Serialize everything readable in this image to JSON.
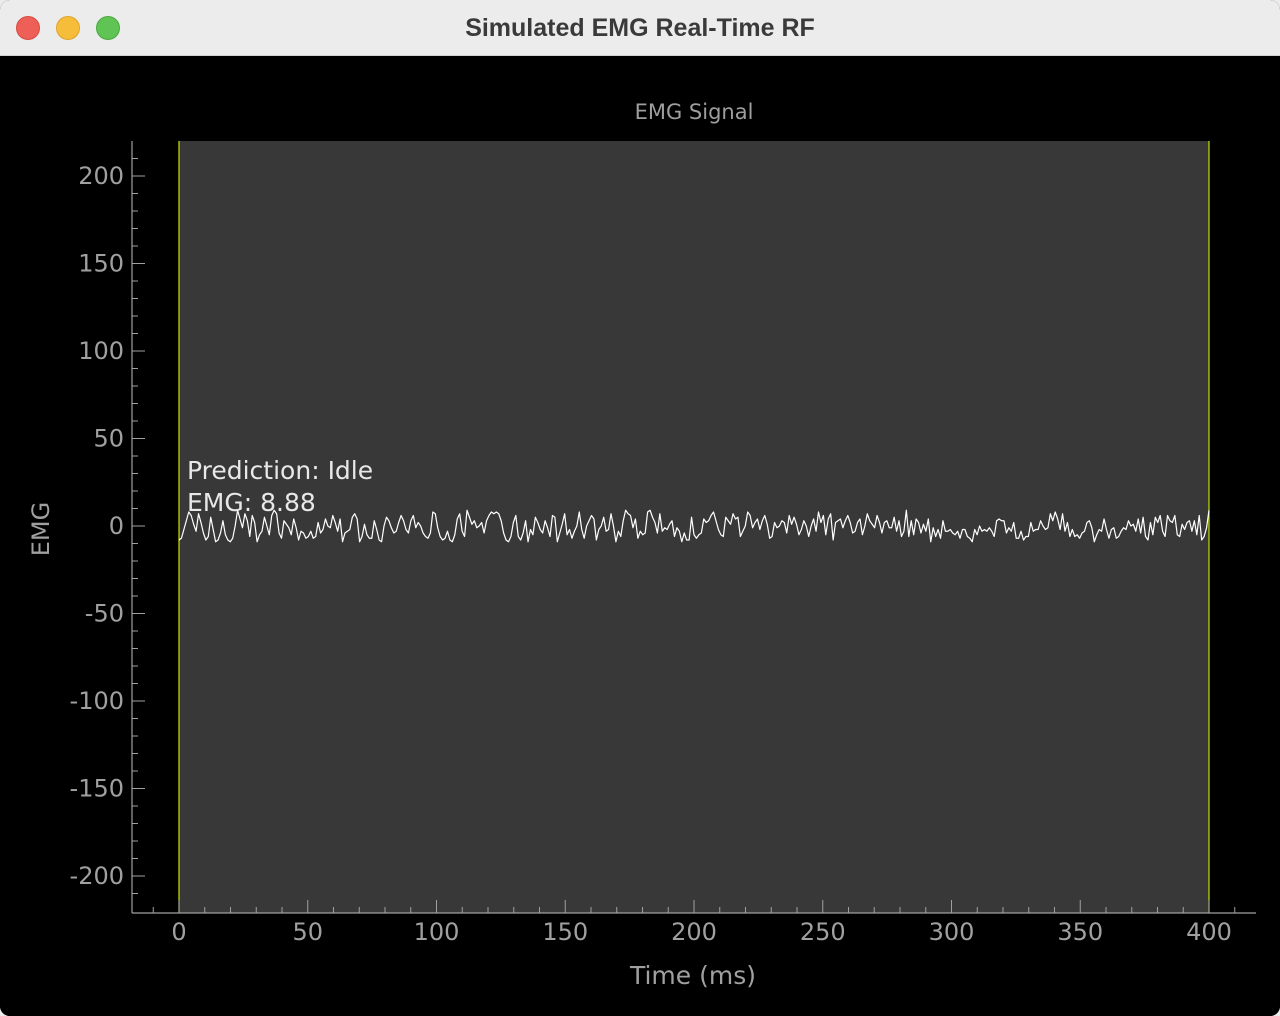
{
  "window": {
    "title": "Simulated EMG Real-Time RF"
  },
  "annotation": {
    "prediction": "Prediction: Idle",
    "emg": "EMG: 8.88"
  },
  "colors": {
    "plot_bg": "#383838",
    "signal": "#ffffff",
    "boundary": "#c8e000",
    "axis": "#a0a0a0"
  },
  "chart_data": {
    "type": "line",
    "title": "EMG Signal",
    "xlabel": "Time (ms)",
    "ylabel": "EMG",
    "xlim": [
      -18,
      418
    ],
    "ylim": [
      -220,
      220
    ],
    "xticks": [
      0,
      50,
      100,
      150,
      200,
      250,
      300,
      350,
      400
    ],
    "yticks": [
      200,
      150,
      100,
      50,
      0,
      -50,
      -100,
      -150,
      -200
    ],
    "grid": false,
    "window_start": 0,
    "window_end": 400,
    "series": [
      {
        "values": [
          -8,
          -7,
          -2,
          3,
          8,
          6,
          1,
          -3,
          7,
          2,
          -4,
          -8,
          -6,
          5,
          -2,
          -9,
          -8,
          -4,
          3,
          -5,
          -8,
          -9,
          -7,
          0,
          9,
          4,
          -1,
          7,
          3,
          -6,
          6,
          2,
          -9,
          -5,
          -3,
          5,
          0,
          -5,
          6,
          9,
          7,
          -4,
          -7,
          3,
          1,
          -1,
          -5,
          4,
          -1,
          -8,
          -3,
          -4,
          -7,
          -6,
          -3,
          -7,
          -6,
          2,
          -4,
          -2,
          4,
          0,
          -1,
          6,
          2,
          -3,
          4,
          -9,
          -4,
          -3,
          -2,
          5,
          7,
          4,
          -9,
          -6,
          1,
          -5,
          -7,
          -7,
          3,
          -2,
          -8,
          -9,
          0,
          5,
          3,
          -1,
          -4,
          -3,
          2,
          6,
          3,
          -2,
          -4,
          3,
          6,
          -1,
          2,
          0,
          -4,
          -6,
          -7,
          -4,
          8,
          7,
          -1,
          -6,
          -8,
          -7,
          -3,
          -8,
          -9,
          -5,
          4,
          7,
          -3,
          -6,
          9,
          5,
          1,
          3,
          -1,
          0,
          2,
          -4,
          3,
          6,
          8,
          7,
          8,
          7,
          3,
          -4,
          -8,
          -9,
          -6,
          2,
          6,
          -6,
          -8,
          -4,
          3,
          -9,
          -2,
          -5,
          5,
          2,
          -2,
          -4,
          3,
          -1,
          -6,
          6,
          5,
          -9,
          -4,
          1,
          7,
          -5,
          -2,
          -7,
          -3,
          0,
          8,
          -2,
          -7,
          0,
          3,
          6,
          4,
          -8,
          -2,
          0,
          5,
          -3,
          -2,
          7,
          0,
          -9,
          -3,
          -6,
          3,
          9,
          7,
          6,
          -1,
          4,
          -7,
          -3,
          -5,
          -4,
          8,
          9,
          5,
          2,
          -4,
          7,
          -3,
          -1,
          -2,
          1,
          3,
          -6,
          -1,
          -3,
          -9,
          -4,
          -8,
          -8,
          5,
          -5,
          -7,
          -5,
          -4,
          4,
          2,
          3,
          6,
          8,
          3,
          -2,
          -5,
          -6,
          5,
          3,
          1,
          7,
          4,
          5,
          -6,
          -3,
          0,
          8,
          6,
          -1,
          2,
          4,
          -2,
          3,
          6,
          1,
          -7,
          -6,
          2,
          -1,
          0,
          3,
          2,
          -4,
          6,
          1,
          5,
          1,
          -5,
          -2,
          3,
          0,
          -6,
          0,
          4,
          -3,
          8,
          2,
          6,
          -5,
          4,
          7,
          -8,
          2,
          3,
          4,
          -1,
          3,
          6,
          2,
          -4,
          -3,
          2,
          4,
          -5,
          0,
          7,
          3,
          1,
          -1,
          6,
          2,
          -4,
          2,
          3,
          -1,
          -1,
          5,
          -3,
          3,
          -6,
          -3,
          9,
          -6,
          3,
          -5,
          4,
          2,
          -4,
          1,
          -3,
          4,
          -9,
          -1,
          -6,
          -2,
          -7,
          3,
          -3,
          -3,
          -2,
          -4,
          -5,
          -3,
          -7,
          -2,
          -2,
          -6,
          -7,
          -9,
          -2,
          -5,
          0,
          -3,
          -2,
          -3,
          -1,
          -3,
          -6,
          3,
          4,
          3,
          3,
          -4,
          -1,
          -3,
          2,
          -7,
          -7,
          -3,
          -8,
          -6,
          -6,
          2,
          -3,
          -2,
          -2,
          3,
          0,
          -2,
          -1,
          7,
          3,
          8,
          4,
          -2,
          7,
          -3,
          2,
          -6,
          -2,
          -6,
          -5,
          -7,
          -4,
          -3,
          2,
          3,
          -1,
          -9,
          -5,
          -2,
          -3,
          4,
          -2,
          -7,
          -2,
          -1,
          -7,
          -6,
          -3,
          -1,
          -2,
          3,
          0,
          1,
          -3,
          4,
          -4,
          5,
          -6,
          -8,
          2,
          -5,
          5,
          2,
          6,
          -3,
          -6,
          6,
          3,
          2,
          6,
          -5,
          -6,
          1,
          -2,
          2,
          3,
          -3,
          3,
          -5,
          6,
          -8,
          -6,
          -1,
          9
        ]
      }
    ]
  }
}
